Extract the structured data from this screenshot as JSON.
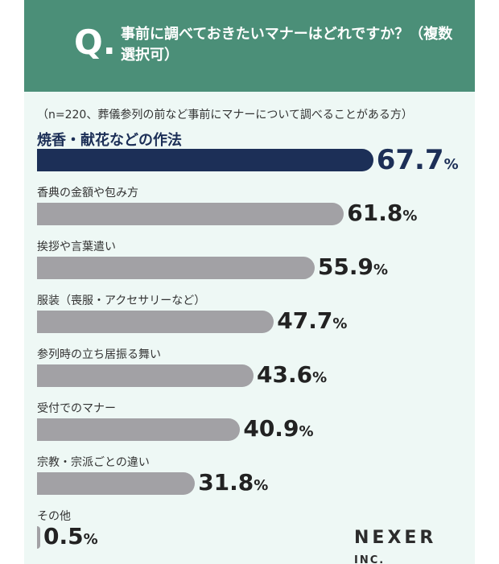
{
  "header": {
    "q_mark": "Q.",
    "question": "事前に調べておきたいマナーはどれですか？（複数選択可）"
  },
  "note": "（n=220、葬儀参列の前など事前にマナーについて調べることがある方）",
  "percent_sign": "%",
  "logo": {
    "name": "NEXER",
    "suffix": "INC."
  },
  "colors": {
    "header": "#4b8f78",
    "highlight": "#1c2f57",
    "bar": "#a2a1a5",
    "background": "#eef8f5"
  },
  "chart_data": {
    "type": "bar",
    "orientation": "horizontal",
    "categories": [
      "焼香・献花などの作法",
      "香典の金額や包み方",
      "挨拶や言葉遣い",
      "服装（喪服・アクセサリーなど）",
      "参列時の立ち居振る舞い",
      "受付でのマナー",
      "宗教・宗派ごとの違い",
      "その他"
    ],
    "values": [
      67.7,
      61.8,
      55.9,
      47.7,
      43.6,
      40.9,
      31.8,
      0.5
    ],
    "value_labels": [
      "67.7",
      "61.8",
      "55.9",
      "47.7",
      "43.6",
      "40.9",
      "31.8",
      "0.5"
    ],
    "unit": "%",
    "highlight_index": 0,
    "xlim": [
      0,
      100
    ]
  }
}
